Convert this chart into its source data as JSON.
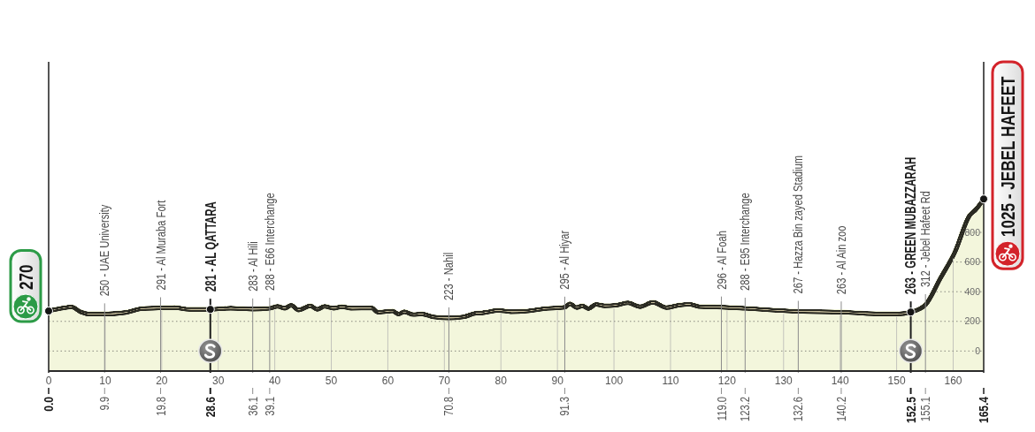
{
  "chart_data": {
    "type": "area",
    "xlim": [
      0,
      165.4
    ],
    "ylim": [
      -135,
      1950
    ],
    "xticks": [
      0,
      10,
      20,
      30,
      40,
      50,
      60,
      70,
      80,
      90,
      100,
      110,
      120,
      130,
      140,
      150,
      160
    ],
    "yticks": [
      0,
      200,
      400,
      600,
      800
    ],
    "grid": true,
    "x2lim": [
      0,
      165.4
    ],
    "x2ticks": [
      {
        "value": 0,
        "label": "0.0"
      },
      9.9,
      19.8,
      28.6,
      36.1,
      39.1,
      70.8,
      91.3,
      {
        "value": 119,
        "label": "119.0"
      },
      123.2,
      132.6,
      140.2,
      152.5,
      155.1,
      165.4
    ],
    "x": [
      0,
      2,
      4.1,
      5.6,
      7.2,
      9.9,
      13.4,
      16.6,
      19.8,
      22.3,
      24.9,
      28.6,
      32.2,
      36.1,
      39.1,
      40.5,
      41.8,
      42.9,
      44.2,
      46.3,
      47.5,
      48.8,
      50.4,
      51.9,
      53.5,
      57.2,
      58.2,
      60.8,
      61.9,
      62.9,
      64.5,
      66,
      68.1,
      70.8,
      73.3,
      75.4,
      77,
      79.6,
      81.7,
      84.8,
      87.9,
      91.3,
      92.2,
      93.4,
      94.4,
      95.5,
      96.8,
      98.3,
      100.4,
      102.5,
      104.6,
      106.9,
      109.3,
      111.4,
      113.4,
      115,
      119,
      123.2,
      132.6,
      140.2,
      144.7,
      149.9,
      152.5,
      155.1,
      157.7,
      160.3,
      162.9,
      164,
      165.4
    ],
    "series": [
      {
        "color": "#f3f6dc",
        "values": [
          270,
          286,
          297,
          265,
          250,
          250,
          259,
          286,
          291,
          293,
          281,
          281,
          289,
          283,
          288,
          301,
          289,
          309,
          277,
          305,
          281,
          301,
          289,
          299,
          289,
          290,
          262,
          270,
          250,
          265,
          246,
          250,
          230,
          223,
          230,
          253,
          259,
          274,
          265,
          270,
          286,
          295,
          319,
          293,
          305,
          286,
          315,
          305,
          309,
          325,
          299,
          329,
          293,
          309,
          315,
          300,
          296,
          288,
          267,
          263,
          253,
          250,
          263,
          312,
          488,
          667,
          914,
          954,
          1025
        ]
      }
    ],
    "annotations": [
      {
        "text": "270",
        "x": 0,
        "y": 270
      },
      {
        "text": "250 - UAE University",
        "x": 9.9,
        "y": 250
      },
      {
        "text": "291 - Al Muraba Fort",
        "x": 19.8,
        "y": 291
      },
      {
        "text": "283 - Al Hili",
        "x": 36.1,
        "y": 283
      },
      {
        "text": "288 - E66 Interchange",
        "x": 39.1,
        "y": 288
      },
      {
        "text": "223 - Nahil",
        "x": 70.8,
        "y": 223
      },
      {
        "text": "295 - Al Hiyar",
        "x": 91.3,
        "y": 295
      },
      {
        "text": "296 - Al Foah",
        "x": 119,
        "y": 296
      },
      {
        "text": "288 - E95 Interchange",
        "x": 123.2,
        "y": 288
      },
      {
        "text": "267 - Hazza Bin zayed Stadium",
        "x": 132.6,
        "y": 267
      },
      {
        "text": "263 - Al Ain zoo",
        "x": 140.2,
        "y": 263
      },
      {
        "text": "312 - Jebel Hafeet Rd",
        "x": 155.1,
        "y": 312
      },
      {
        "text": "1025 - JEBEL HAFEET",
        "x": 165.4,
        "y": 1025
      }
    ],
    "ref_lines": [
      {
        "axis": "x",
        "value": 28.6,
        "label": "281 - AL QATTARA"
      },
      {
        "axis": "x",
        "value": 152.5,
        "label": "263 - GREEN MUBAZZARAH"
      }
    ]
  }
}
